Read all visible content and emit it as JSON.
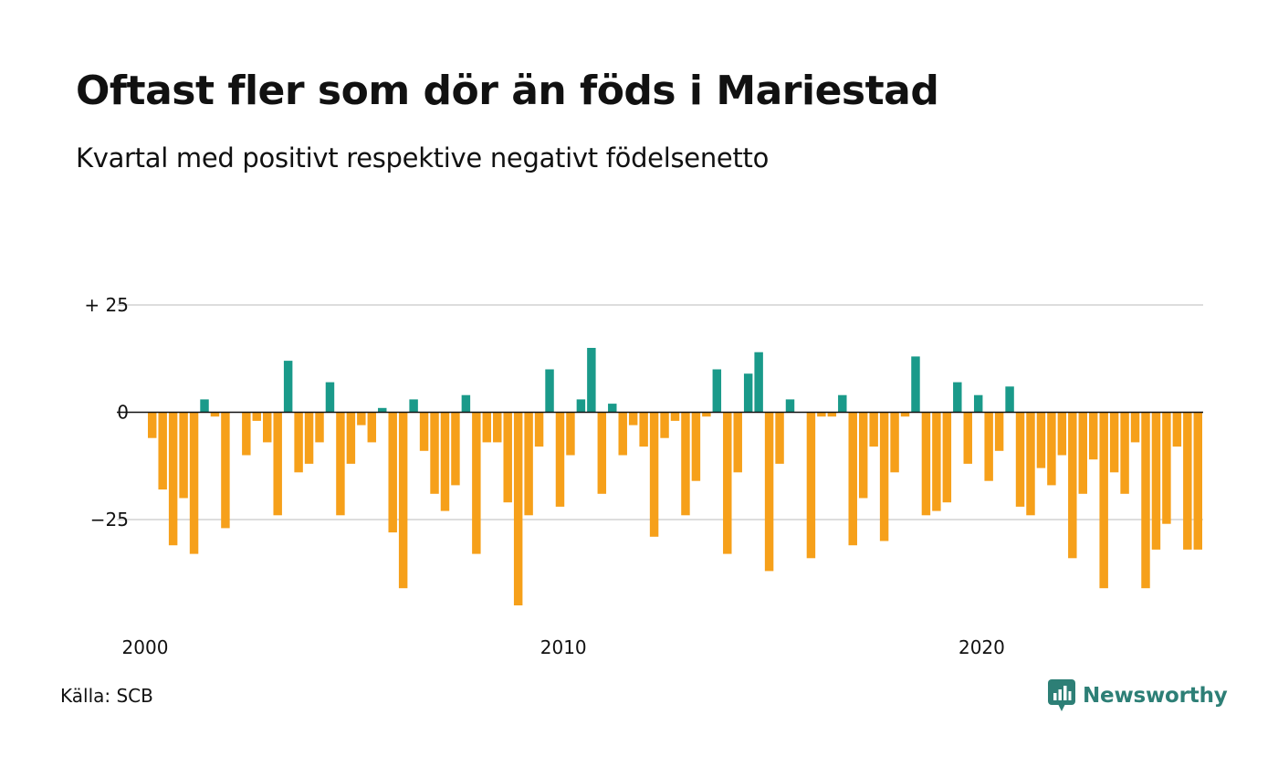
{
  "header": {
    "title": "Oftast fler som dör än föds i Mariestad",
    "subtitle": "Kvartal med positivt respektive negativt födelsenetto"
  },
  "footer": {
    "source": "Källa: SCB",
    "brand": "Newsworthy"
  },
  "colors": {
    "positive": "#1a9a8a",
    "negative": "#f6a01a",
    "gridline": "#dddddd",
    "zeroline": "#111111",
    "brand": "#2d7f76"
  },
  "icons": {
    "brand_logo": "chat-bar-chart-icon"
  },
  "chart_data": {
    "type": "bar",
    "y_tick_labels": [
      "+ 25",
      "0",
      "−25"
    ],
    "y_ticks": [
      25,
      0,
      -25
    ],
    "ylim": [
      -47,
      25
    ],
    "x_tick_labels": [
      "2000",
      "2010",
      "2020"
    ],
    "x_tick_years": [
      2000,
      2010,
      2020
    ],
    "first_quarter": "2000 K1",
    "grid": true,
    "values": [
      -6,
      -18,
      -31,
      -20,
      -33,
      3,
      -1,
      -27,
      0,
      -10,
      -2,
      -7,
      -24,
      12,
      -14,
      -12,
      -7,
      7,
      -24,
      -12,
      -3,
      -7,
      1,
      -28,
      -41,
      3,
      -9,
      -19,
      -23,
      -17,
      4,
      -33,
      -7,
      -7,
      -21,
      -45,
      -24,
      -8,
      10,
      -22,
      -10,
      3,
      15,
      -19,
      2,
      -10,
      -3,
      -8,
      -29,
      -6,
      -2,
      -24,
      -16,
      -1,
      10,
      -33,
      -14,
      9,
      14,
      -37,
      -12,
      3,
      0,
      -34,
      -1,
      -1,
      4,
      -31,
      -20,
      -8,
      -30,
      -14,
      -1,
      13,
      -24,
      -23,
      -21,
      7,
      -12,
      4,
      -16,
      -9,
      6,
      -22,
      -24,
      -13,
      -17,
      -10,
      -34,
      -19,
      -11,
      -41,
      -14,
      -19,
      -7,
      -41,
      -32,
      -26,
      -8,
      -32,
      -32
    ]
  }
}
